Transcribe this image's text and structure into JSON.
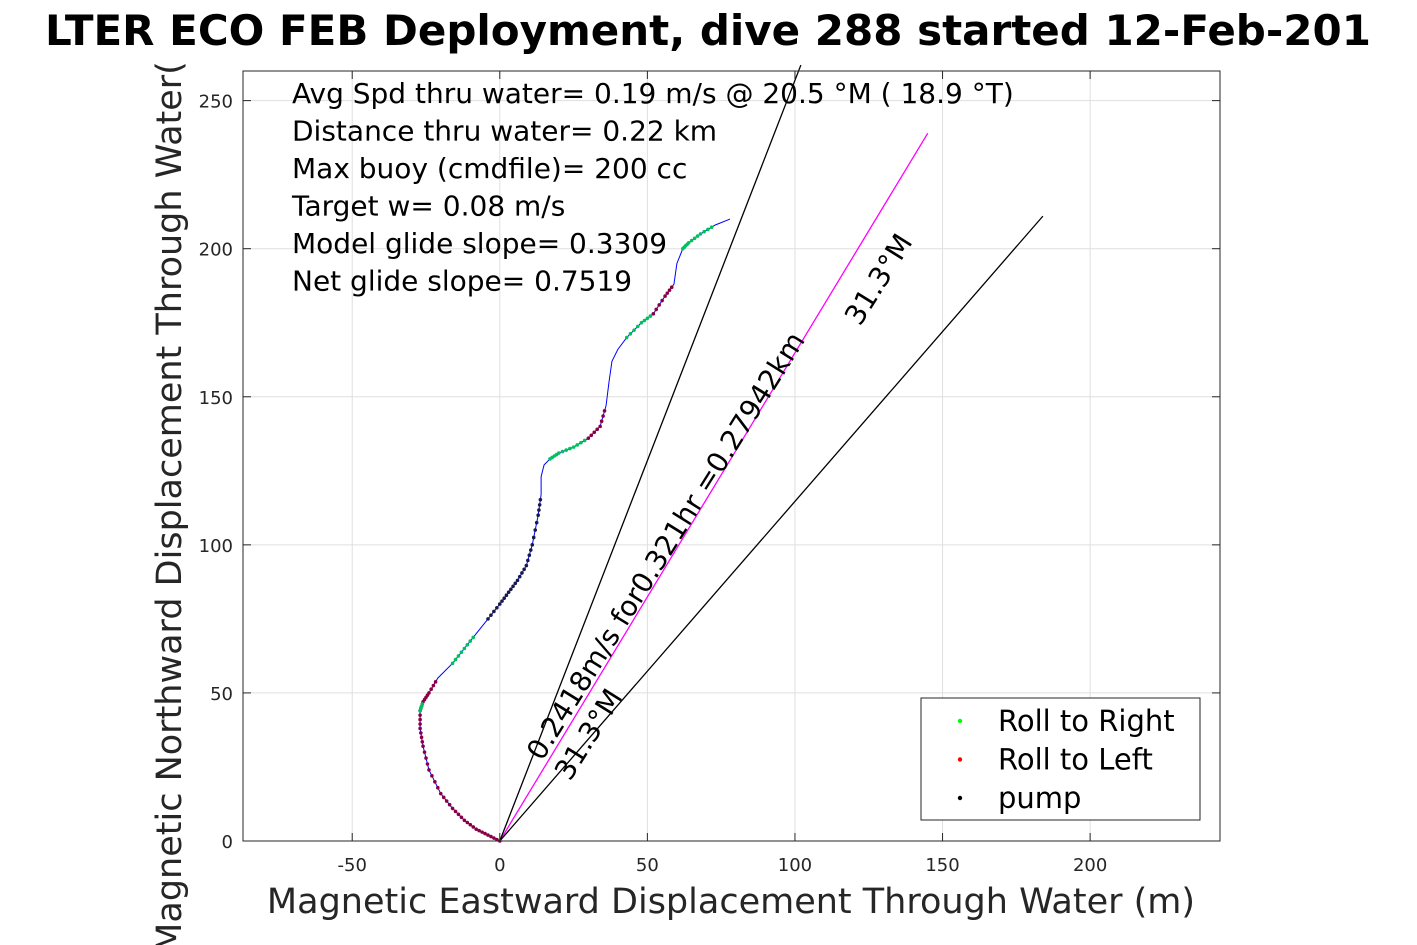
{
  "chart_data": {
    "type": "scatter",
    "title": "LTER ECO FEB Deployment, dive 288 started 12-Feb-201",
    "xlabel": "Magnetic Eastward Displacement Through Water (m)",
    "ylabel": "Magnetic Northward Displacement Through Water(",
    "xlim": [
      -87,
      244
    ],
    "ylim": [
      0,
      260
    ],
    "xticks": [
      -50,
      0,
      50,
      100,
      150,
      200
    ],
    "yticks": [
      0,
      50,
      100,
      150,
      200,
      250
    ],
    "grid": true,
    "legend_position": "bottom-right",
    "stats_text": [
      "Avg Spd thru water=  0.19 m/s @  20.5 °M ( 18.9 °T)",
      "Distance thru water=  0.22 km",
      "Max buoy (cmdfile)= 200 cc",
      "Target w= 0.08 m/s",
      "Model glide slope= 0.3309",
      "Net glide slope= 0.7519"
    ],
    "annotations": {
      "speed_line_label": "0.2418m/s for0.321hr =0.27942km",
      "heading_label_far": "31.3°M",
      "heading_label_near": "31.3°M"
    },
    "legend": [
      {
        "label": "Roll to Right",
        "color": "#00ff00"
      },
      {
        "label": "Roll to Left",
        "color": "#ff0000"
      },
      {
        "label": "pump",
        "color": "#000000"
      }
    ],
    "track": {
      "color": "#0000ff",
      "x": [
        0,
        -4,
        -8,
        -12,
        -16,
        -20,
        -24,
        -26,
        -27,
        -27,
        -26,
        -24,
        -21,
        -16,
        -12,
        -8,
        -4,
        0,
        3,
        6,
        9,
        11,
        13,
        14,
        14,
        15,
        17,
        20,
        25,
        30,
        34,
        36,
        37,
        38,
        40,
        43,
        48,
        52,
        56,
        59,
        60,
        62,
        64,
        68,
        73,
        78
      ],
      "y": [
        0,
        2,
        4,
        7,
        11,
        16,
        24,
        32,
        38,
        44,
        47,
        50,
        55,
        60,
        65,
        70,
        75,
        80,
        84,
        88,
        93,
        100,
        110,
        117,
        123,
        127,
        129,
        131,
        133,
        136,
        140,
        147,
        155,
        162,
        166,
        170,
        175,
        178,
        184,
        188,
        195,
        200,
        202,
        205,
        208,
        210
      ]
    },
    "roll_right_segments": [
      [
        26,
        29
      ],
      [
        35,
        37
      ],
      [
        41,
        44
      ],
      [
        13,
        15
      ],
      [
        9,
        10
      ]
    ],
    "roll_left_segments": [
      [
        0,
        12
      ],
      [
        29,
        31
      ],
      [
        37,
        39
      ]
    ],
    "pump_segments": [
      [
        16,
        23
      ]
    ],
    "reference_lines": [
      {
        "name": "depth-averaged-current-line",
        "color": "#ff00ff",
        "x": [
          0,
          145
        ],
        "y": [
          0,
          239
        ]
      },
      {
        "name": "net-glide-line",
        "color": "#000000",
        "x": [
          0,
          102
        ],
        "y": [
          0,
          262
        ]
      },
      {
        "name": "heading-line",
        "color": "#000000",
        "x": [
          0,
          184
        ],
        "y": [
          0,
          211
        ]
      }
    ]
  }
}
